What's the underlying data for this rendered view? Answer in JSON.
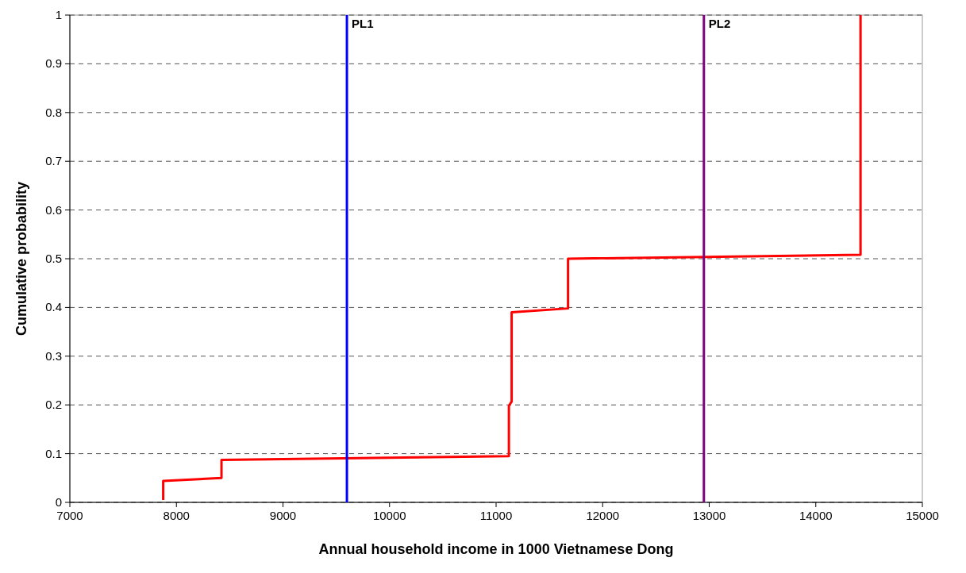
{
  "chart_data": {
    "type": "line",
    "xlabel": "Annual household income in 1000 Vietnamese Dong",
    "ylabel": "Cumulative probability",
    "x": [
      7876,
      7876,
      8423,
      8423,
      11120,
      11120,
      11146,
      11146,
      11675,
      11675,
      14420,
      14420
    ],
    "series": [
      {
        "color": "#ff0000",
        "values": [
          0.005,
          0.044,
          0.05,
          0.087,
          0.095,
          0.198,
          0.207,
          0.39,
          0.398,
          0.5,
          0.508,
          1
        ]
      }
    ],
    "xlim": [
      7000,
      15000
    ],
    "xticks": [
      7000,
      8000,
      9000,
      10000,
      11000,
      12000,
      13000,
      14000,
      15000
    ],
    "ylim": [
      0,
      1
    ],
    "yticks": [
      0,
      0.1,
      0.2,
      0.3,
      0.4,
      0.5,
      0.6,
      0.7,
      0.8,
      0.9,
      1
    ],
    "grid": "y",
    "marker": "none",
    "line_style": "solid",
    "ref_lines": [
      {
        "axis": "x",
        "value": 9600,
        "label": "PL1",
        "color": "#0000ff"
      },
      {
        "axis": "x",
        "value": 12950,
        "label": "PL2",
        "color": "#800080"
      }
    ]
  }
}
